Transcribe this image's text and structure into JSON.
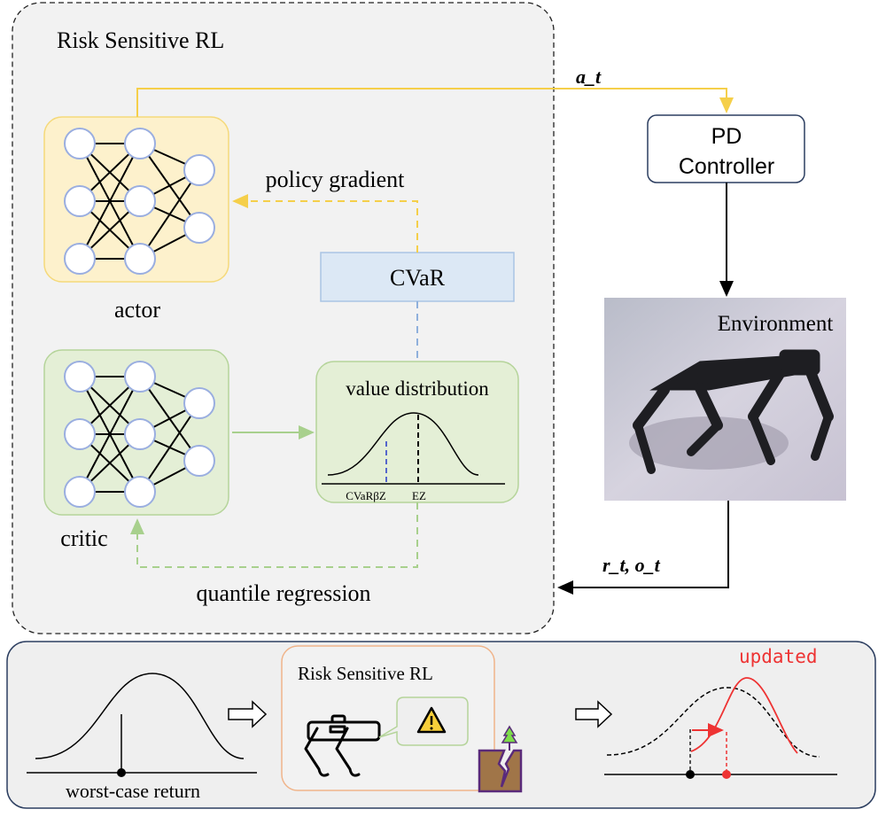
{
  "main_panel": {
    "title": "Risk Sensitive RL",
    "actor_label": "actor",
    "critic_label": "critic",
    "cvar_label": "CVaR",
    "policy_gradient_label": "policy gradient",
    "value_distribution_label": "value distribution",
    "cvar_tick_label": "CVaRβZ",
    "expectation_tick_label": "EZ",
    "quantile_regression_label": "quantile regression"
  },
  "action_label": "a_t",
  "controller": {
    "line1": "PD",
    "line2": "Controller"
  },
  "environment_label": "Environment",
  "feedback_label": "r_t, o_t",
  "bottom_panel": {
    "worst_case_label": "worst-case return",
    "inner_title": "Risk Sensitive RL",
    "updated_label": "updated",
    "icons": [
      "robot-dog-icon",
      "warning-icon",
      "cliff-icon"
    ]
  },
  "colors": {
    "actor_fill": "#fdf1cc",
    "critic_fill": "#e4efd6",
    "cvar_fill": "#dce8f5",
    "yellow_arrow": "#f5cf4a",
    "green_arrow": "#a8d08d",
    "blue_dashed": "#8fb0dc",
    "updated_red": "#ee3333"
  }
}
